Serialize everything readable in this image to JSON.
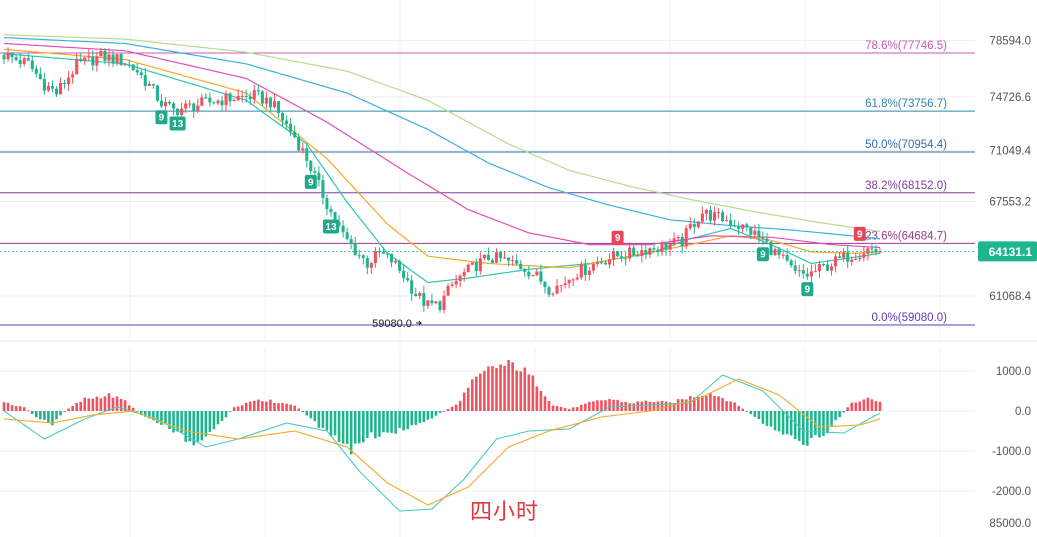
{
  "chart_data": [
    {
      "type": "candlestick",
      "title": "",
      "price_axis_labels": [
        "78594.0",
        "74726.6",
        "71049.4",
        "67553.2",
        "64131.1",
        "61068.4"
      ],
      "price_ticks": [
        78594.0,
        74726.6,
        71049.4,
        67553.2,
        61068.4
      ],
      "ylim": [
        58600,
        80000
      ],
      "current_price": 64131.1,
      "current_price_label": "64131.1",
      "low_marker": {
        "value": 59080.0,
        "label": "59080.0"
      },
      "fibonacci": [
        {
          "label": "78.6%(77746.5)",
          "value": 77746.5,
          "color": "#c75bb4"
        },
        {
          "label": "61.8%(73756.7)",
          "value": 73756.7,
          "color": "#2e86a8"
        },
        {
          "label": "50.0%(70954.4)",
          "value": 70954.4,
          "color": "#2f6fb0"
        },
        {
          "label": "38.2%(68152.0)",
          "value": 68152.0,
          "color": "#7e3fa0"
        },
        {
          "label": "23.6%(64684.7)",
          "value": 64684.7,
          "color": "#9a3b8f"
        },
        {
          "label": "0.0%(59080.0)",
          "value": 59080.0,
          "color": "#5a40b8"
        }
      ],
      "candle_keyframes": [
        [
          0,
          77600
        ],
        [
          6,
          77000
        ],
        [
          10,
          75600
        ],
        [
          13,
          75000
        ],
        [
          18,
          76900
        ],
        [
          24,
          77500
        ],
        [
          28,
          77300
        ],
        [
          30,
          77100
        ],
        [
          33,
          76500
        ],
        [
          36,
          75500
        ],
        [
          39,
          74300
        ],
        [
          42,
          73800
        ],
        [
          48,
          74200
        ],
        [
          55,
          74600
        ],
        [
          62,
          74800
        ],
        [
          66,
          74400
        ],
        [
          69,
          73200
        ],
        [
          72,
          72000
        ],
        [
          75,
          70500
        ],
        [
          78,
          68600
        ],
        [
          81,
          66800
        ],
        [
          84,
          65200
        ],
        [
          87,
          64200
        ],
        [
          90,
          63300
        ],
        [
          93,
          64000
        ],
        [
          96,
          63500
        ],
        [
          99,
          62500
        ],
        [
          102,
          61200
        ],
        [
          105,
          60400
        ],
        [
          108,
          60500
        ],
        [
          111,
          61800
        ],
        [
          114,
          62600
        ],
        [
          117,
          63200
        ],
        [
          120,
          63700
        ],
        [
          123,
          63600
        ],
        [
          126,
          63300
        ],
        [
          129,
          63000
        ],
        [
          132,
          62400
        ],
        [
          135,
          61600
        ],
        [
          138,
          61800
        ],
        [
          141,
          62600
        ],
        [
          144,
          62900
        ],
        [
          147,
          63400
        ],
        [
          150,
          63700
        ],
        [
          153,
          63900
        ],
        [
          156,
          64000
        ],
        [
          159,
          64300
        ],
        [
          162,
          64400
        ],
        [
          165,
          64600
        ],
        [
          168,
          64800
        ],
        [
          170,
          65800
        ],
        [
          173,
          66800
        ],
        [
          176,
          66500
        ],
        [
          179,
          66300
        ],
        [
          182,
          65900
        ],
        [
          185,
          65500
        ],
        [
          188,
          64900
        ],
        [
          190,
          64300
        ],
        [
          193,
          63500
        ],
        [
          196,
          62600
        ],
        [
          199,
          62500
        ],
        [
          202,
          62900
        ],
        [
          205,
          63300
        ],
        [
          208,
          63700
        ],
        [
          211,
          64000
        ],
        [
          214,
          64300
        ],
        [
          217,
          64131.1
        ]
      ],
      "ma_series": [
        {
          "name": "",
          "color": "#2fc6b0",
          "points": [
            [
              0,
              77700
            ],
            [
              30,
              77000
            ],
            [
              60,
              74500
            ],
            [
              75,
              71500
            ],
            [
              85,
              67500
            ],
            [
              95,
              64000
            ],
            [
              105,
              62000
            ],
            [
              115,
              62300
            ],
            [
              130,
              62900
            ],
            [
              145,
              63300
            ],
            [
              160,
              64000
            ],
            [
              170,
              65000
            ],
            [
              180,
              65700
            ],
            [
              190,
              64600
            ],
            [
              200,
              63300
            ],
            [
              210,
              63700
            ],
            [
              217,
              64000
            ]
          ]
        },
        {
          "name": "",
          "color": "#f4a82a",
          "points": [
            [
              0,
              78000
            ],
            [
              30,
              77300
            ],
            [
              60,
              75000
            ],
            [
              80,
              70500
            ],
            [
              95,
              66000
            ],
            [
              105,
              63800
            ],
            [
              120,
              63300
            ],
            [
              140,
              63000
            ],
            [
              155,
              63800
            ],
            [
              170,
              64600
            ],
            [
              180,
              65200
            ],
            [
              190,
              64900
            ],
            [
              200,
              64100
            ],
            [
              210,
              64000
            ],
            [
              217,
              64100
            ]
          ]
        },
        {
          "name": "",
          "color": "#e04fb7",
          "points": [
            [
              0,
              78400
            ],
            [
              30,
              77900
            ],
            [
              60,
              76000
            ],
            [
              80,
              73000
            ],
            [
              100,
              69500
            ],
            [
              115,
              67000
            ],
            [
              130,
              65400
            ],
            [
              145,
              64600
            ],
            [
              160,
              64600
            ],
            [
              175,
              65200
            ],
            [
              190,
              65100
            ],
            [
              205,
              64600
            ],
            [
              217,
              64400
            ]
          ]
        },
        {
          "name": "",
          "color": "#3bb0e0",
          "points": [
            [
              0,
              78800
            ],
            [
              30,
              78400
            ],
            [
              60,
              77000
            ],
            [
              85,
              75000
            ],
            [
              105,
              72500
            ],
            [
              120,
              70200
            ],
            [
              135,
              68500
            ],
            [
              150,
              67300
            ],
            [
              165,
              66300
            ],
            [
              180,
              65900
            ],
            [
              195,
              65600
            ],
            [
              210,
              65200
            ],
            [
              217,
              65000
            ]
          ]
        },
        {
          "name": "",
          "color": "#b4dd8c",
          "points": [
            [
              0,
              79000
            ],
            [
              30,
              78700
            ],
            [
              60,
              77800
            ],
            [
              85,
              76500
            ],
            [
              105,
              74500
            ],
            [
              125,
              71500
            ],
            [
              140,
              69700
            ],
            [
              155,
              68600
            ],
            [
              170,
              67700
            ],
            [
              185,
              66900
            ],
            [
              200,
              66200
            ],
            [
              217,
              65500
            ]
          ]
        }
      ],
      "td_sequential_markers": [
        {
          "label": "9",
          "index": 39,
          "kind": "buy"
        },
        {
          "label": "13",
          "index": 43,
          "kind": "buy"
        },
        {
          "label": "9",
          "index": 76,
          "kind": "buy"
        },
        {
          "label": "13",
          "index": 81,
          "kind": "buy"
        },
        {
          "label": "9",
          "index": 152,
          "kind": "sell"
        },
        {
          "label": "9",
          "index": 188,
          "kind": "buy"
        },
        {
          "label": "9",
          "index": 199,
          "kind": "buy"
        },
        {
          "label": "9",
          "index": 212,
          "kind": "sell"
        }
      ]
    },
    {
      "type": "macd",
      "axis_labels": [
        "1000.0",
        "0.0",
        "-1000.0",
        "-2000.0",
        "85000.0"
      ],
      "ylim": [
        -2700,
        1500
      ],
      "hist_keyframes": [
        [
          0,
          200
        ],
        [
          5,
          100
        ],
        [
          8,
          -150
        ],
        [
          12,
          -350
        ],
        [
          15,
          0
        ],
        [
          20,
          300
        ],
        [
          26,
          400
        ],
        [
          30,
          250
        ],
        [
          34,
          -100
        ],
        [
          40,
          -350
        ],
        [
          47,
          -800
        ],
        [
          52,
          -500
        ],
        [
          57,
          100
        ],
        [
          63,
          300
        ],
        [
          72,
          150
        ],
        [
          76,
          -200
        ],
        [
          82,
          -700
        ],
        [
          86,
          -1000
        ],
        [
          90,
          -600
        ],
        [
          95,
          -600
        ],
        [
          100,
          -400
        ],
        [
          104,
          -300
        ],
        [
          108,
          -50
        ],
        [
          112,
          150
        ],
        [
          116,
          700
        ],
        [
          121,
          1100
        ],
        [
          127,
          1150
        ],
        [
          132,
          700
        ],
        [
          136,
          150
        ],
        [
          140,
          50
        ],
        [
          145,
          200
        ],
        [
          150,
          300
        ],
        [
          155,
          200
        ],
        [
          160,
          250
        ],
        [
          165,
          200
        ],
        [
          170,
          350
        ],
        [
          175,
          450
        ],
        [
          180,
          250
        ],
        [
          184,
          0
        ],
        [
          188,
          -300
        ],
        [
          193,
          -600
        ],
        [
          198,
          -850
        ],
        [
          203,
          -600
        ],
        [
          207,
          -150
        ],
        [
          210,
          200
        ],
        [
          214,
          300
        ],
        [
          217,
          250
        ]
      ],
      "dif": [
        [
          0,
          0
        ],
        [
          10,
          -700
        ],
        [
          20,
          -200
        ],
        [
          28,
          100
        ],
        [
          38,
          -200
        ],
        [
          50,
          -900
        ],
        [
          58,
          -700
        ],
        [
          70,
          -300
        ],
        [
          80,
          -500
        ],
        [
          88,
          -1500
        ],
        [
          98,
          -2500
        ],
        [
          106,
          -2450
        ],
        [
          114,
          -1700
        ],
        [
          122,
          -700
        ],
        [
          130,
          -500
        ],
        [
          140,
          -450
        ],
        [
          150,
          100
        ],
        [
          160,
          150
        ],
        [
          170,
          200
        ],
        [
          178,
          900
        ],
        [
          188,
          500
        ],
        [
          198,
          -500
        ],
        [
          208,
          -550
        ],
        [
          217,
          -50
        ]
      ],
      "dea": [
        [
          0,
          -200
        ],
        [
          12,
          -300
        ],
        [
          22,
          -100
        ],
        [
          32,
          0
        ],
        [
          45,
          -500
        ],
        [
          58,
          -700
        ],
        [
          72,
          -500
        ],
        [
          85,
          -900
        ],
        [
          95,
          -1800
        ],
        [
          105,
          -2350
        ],
        [
          115,
          -1900
        ],
        [
          125,
          -900
        ],
        [
          135,
          -500
        ],
        [
          148,
          -150
        ],
        [
          160,
          0
        ],
        [
          172,
          300
        ],
        [
          182,
          800
        ],
        [
          192,
          400
        ],
        [
          202,
          -400
        ],
        [
          212,
          -350
        ],
        [
          217,
          -200
        ]
      ]
    }
  ],
  "caption": "四小时",
  "colors": {
    "up": "#f0525f",
    "down": "#20b48e",
    "sell_marker": "#e8445a",
    "buy_marker": "#1fa88a",
    "price_tag": "#1eb58f"
  }
}
